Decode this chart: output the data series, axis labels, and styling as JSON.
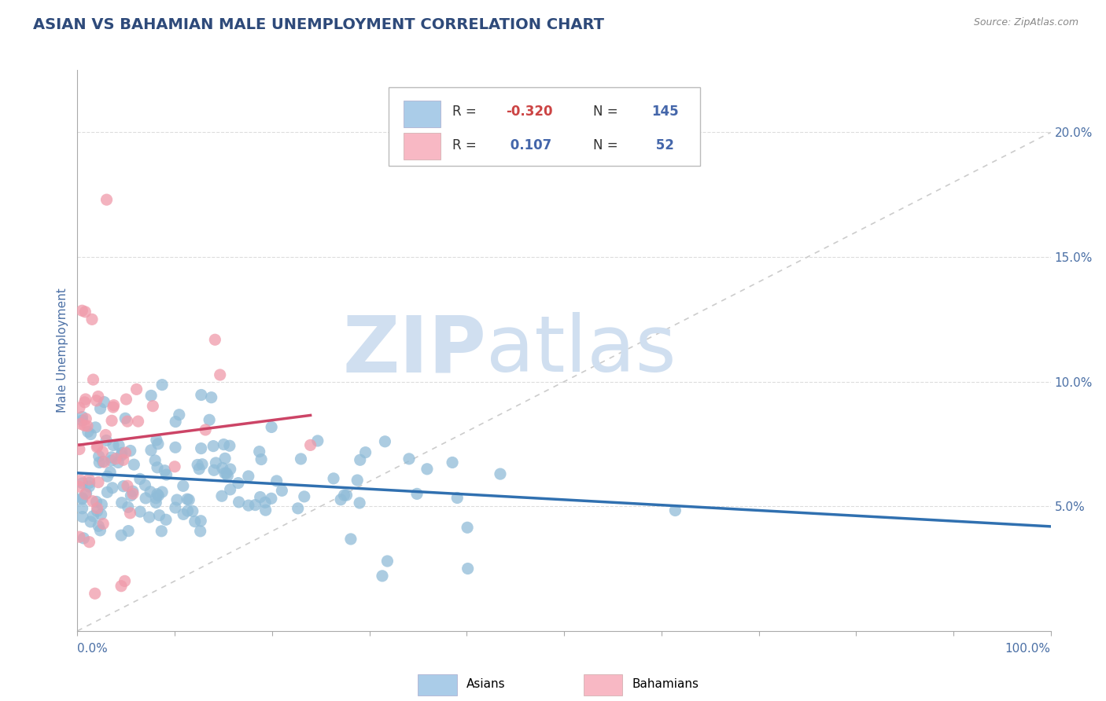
{
  "title": "ASIAN VS BAHAMIAN MALE UNEMPLOYMENT CORRELATION CHART",
  "source_text": "Source: ZipAtlas.com",
  "ylabel": "Male Unemployment",
  "title_color": "#2e4a7a",
  "source_color": "#888888",
  "axis_label_color": "#4a6fa5",
  "tick_color": "#4a6fa5",
  "watermark_zip": "ZIP",
  "watermark_atlas": "atlas",
  "watermark_color": "#d0dff0",
  "blue_dot_color": "#90bcd8",
  "pink_dot_color": "#f09aaa",
  "blue_legend_color": "#aacce8",
  "pink_legend_color": "#f8b8c4",
  "ref_line_color": "#cccccc",
  "blue_trend_color": "#3070b0",
  "pink_trend_color": "#cc4466",
  "legend_text_color": "#333333",
  "legend_r_color": "#cc4444",
  "legend_n_color": "#4466aa",
  "ylim_max": 0.225,
  "y_ticks": [
    0.05,
    0.1,
    0.15,
    0.2
  ],
  "y_tick_labels": [
    "5.0%",
    "10.0%",
    "15.0%",
    "20.0%"
  ],
  "seed": 12345
}
